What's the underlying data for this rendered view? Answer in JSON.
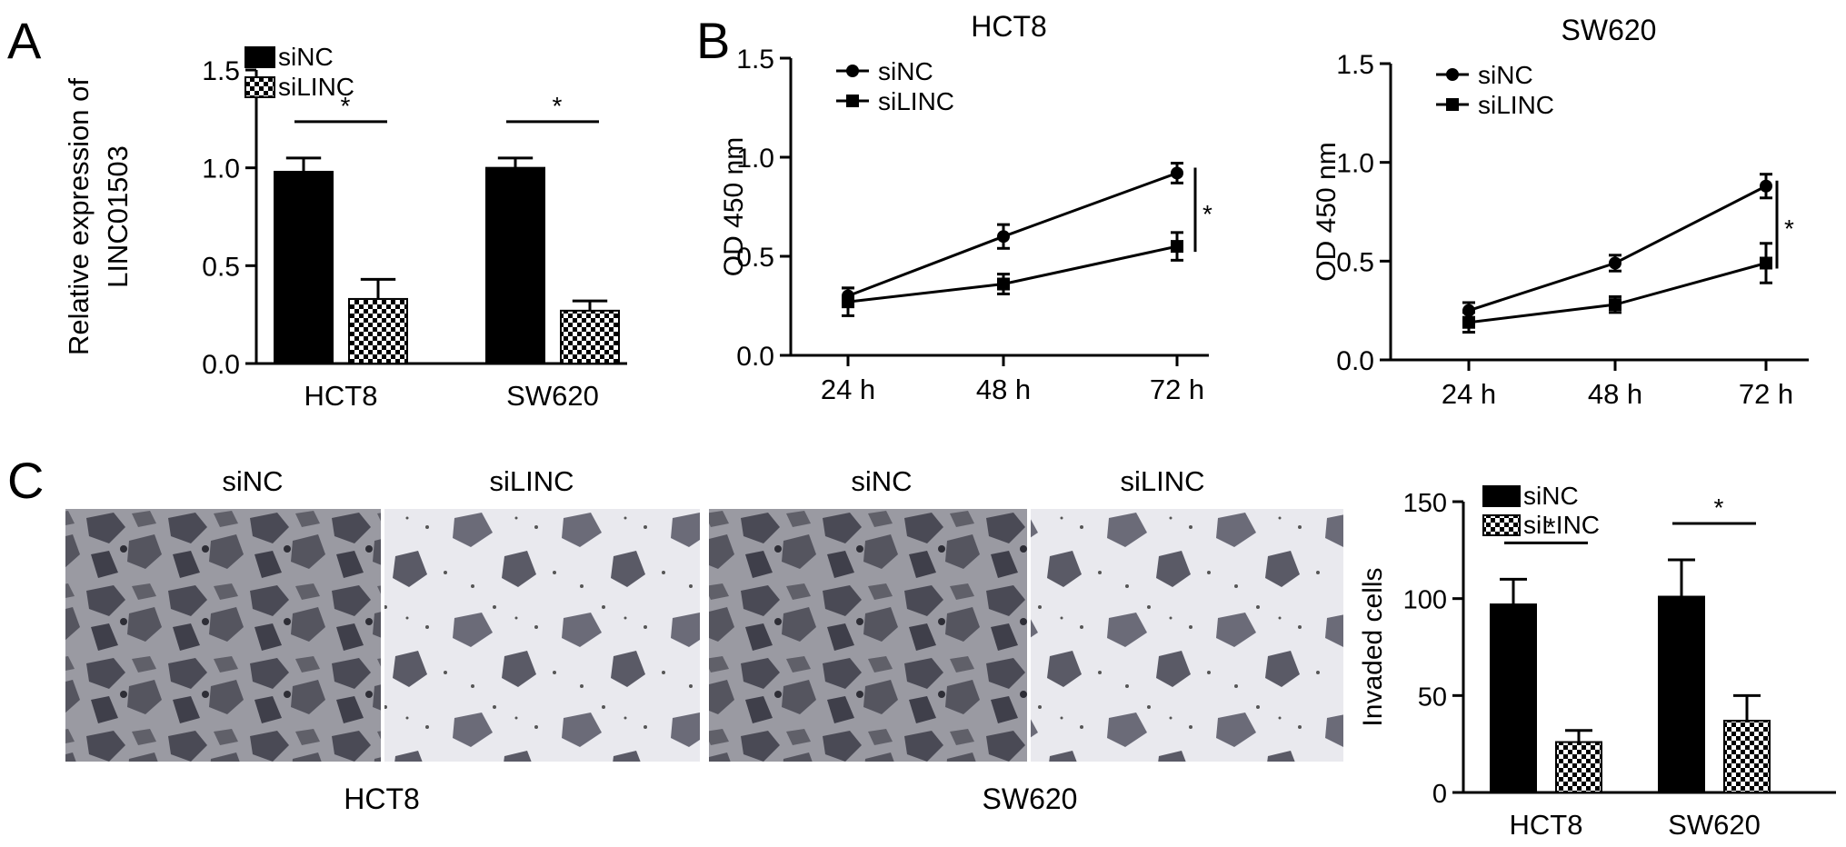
{
  "panels": {
    "A": {
      "letter": "A"
    },
    "B": {
      "letter": "B"
    },
    "C": {
      "letter": "C"
    }
  },
  "micrographs": {
    "column_labels": [
      "siNC",
      "siLINC",
      "siNC",
      "siLINC"
    ],
    "group_labels": [
      "HCT8",
      "SW620"
    ]
  },
  "chart_data": [
    {
      "id": "A",
      "type": "bar",
      "title": "",
      "ylabel": "Relative expression of LINC01503",
      "ylabel_lines": [
        "Relative expression of",
        "LINC01503"
      ],
      "xlabel": "",
      "categories": [
        "HCT8",
        "SW620"
      ],
      "ylim": [
        0,
        1.5
      ],
      "yticks": [
        "0.0",
        "0.5",
        "1.0",
        "1.5"
      ],
      "series": [
        {
          "name": "siNC",
          "values": [
            0.98,
            1.0
          ],
          "errors": [
            0.07,
            0.05
          ]
        },
        {
          "name": "siLINC",
          "values": [
            0.33,
            0.27
          ],
          "errors": [
            0.1,
            0.05
          ]
        }
      ],
      "significance": [
        "*",
        "*"
      ],
      "legend": "top-left"
    },
    {
      "id": "B1",
      "type": "line",
      "title": "HCT8",
      "ylabel": "OD 450 nm",
      "xlabel": "",
      "x": [
        "24 h",
        "48 h",
        "72 h"
      ],
      "ylim": [
        0,
        1.5
      ],
      "yticks": [
        "0.0",
        "0.5",
        "1.0",
        "1.5"
      ],
      "series": [
        {
          "name": "siNC",
          "values": [
            0.3,
            0.6,
            0.92
          ],
          "errors": [
            0.04,
            0.06,
            0.05
          ]
        },
        {
          "name": "siLINC",
          "values": [
            0.27,
            0.36,
            0.55
          ],
          "errors": [
            0.07,
            0.05,
            0.07
          ]
        }
      ],
      "significance": [
        "*"
      ],
      "legend": "top-left"
    },
    {
      "id": "B2",
      "type": "line",
      "title": "SW620",
      "ylabel": "OD 450 nm",
      "xlabel": "",
      "x": [
        "24 h",
        "48 h",
        "72 h"
      ],
      "ylim": [
        0,
        1.5
      ],
      "yticks": [
        "0.0",
        "0.5",
        "1.0",
        "1.5"
      ],
      "series": [
        {
          "name": "siNC",
          "values": [
            0.25,
            0.49,
            0.88
          ],
          "errors": [
            0.04,
            0.04,
            0.06
          ]
        },
        {
          "name": "siLINC",
          "values": [
            0.19,
            0.28,
            0.49
          ],
          "errors": [
            0.05,
            0.04,
            0.1
          ]
        }
      ],
      "significance": [
        "*"
      ],
      "legend": "top-left"
    },
    {
      "id": "C",
      "type": "bar",
      "title": "",
      "ylabel": "Invaded cells",
      "xlabel": "",
      "categories": [
        "HCT8",
        "SW620"
      ],
      "ylim": [
        0,
        150
      ],
      "yticks": [
        "0",
        "50",
        "100",
        "150"
      ],
      "series": [
        {
          "name": "siNC",
          "values": [
            97,
            101
          ],
          "errors": [
            13,
            19
          ]
        },
        {
          "name": "siLINC",
          "values": [
            26,
            37
          ],
          "errors": [
            6,
            13
          ]
        }
      ],
      "significance": [
        "*",
        "*"
      ],
      "legend": "top-left"
    }
  ]
}
